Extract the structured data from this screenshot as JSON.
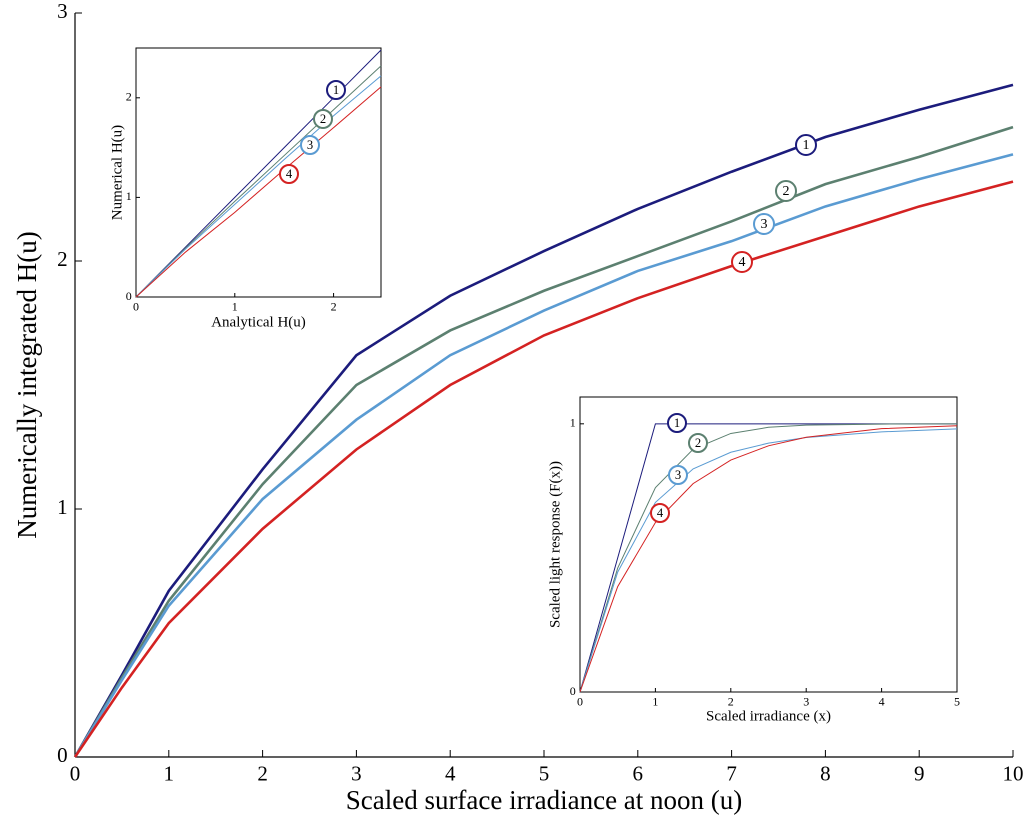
{
  "chart_data": [
    {
      "type": "line",
      "xlabel": "Scaled surface irradiance at noon (u)",
      "ylabel": "Numerically integrated H(u)",
      "x": [
        0,
        0.5,
        1,
        2,
        3,
        4,
        5,
        6,
        7,
        8,
        9,
        10
      ],
      "series": [
        {
          "name": "1",
          "color": "#1c1c7c",
          "values": [
            0,
            0.33,
            0.67,
            1.16,
            1.62,
            1.86,
            2.04,
            2.21,
            2.36,
            2.5,
            2.61,
            2.71
          ]
        },
        {
          "name": "2",
          "color": "#5c8070",
          "values": [
            0,
            0.32,
            0.63,
            1.1,
            1.5,
            1.72,
            1.88,
            2.02,
            2.16,
            2.31,
            2.42,
            2.54
          ]
        },
        {
          "name": "3",
          "color": "#5a9bd2",
          "values": [
            0,
            0.31,
            0.61,
            1.04,
            1.36,
            1.62,
            1.8,
            1.96,
            2.08,
            2.22,
            2.33,
            2.43
          ]
        },
        {
          "name": "4",
          "color": "#d42222",
          "values": [
            0,
            0.28,
            0.54,
            0.92,
            1.24,
            1.5,
            1.7,
            1.85,
            1.98,
            2.1,
            2.22,
            2.32
          ]
        }
      ],
      "xlim": [
        0,
        10
      ],
      "ylim": [
        0,
        3
      ],
      "xticks": [
        0,
        1,
        2,
        3,
        4,
        5,
        6,
        7,
        8,
        9,
        10
      ],
      "yticks": [
        0,
        1,
        2,
        3
      ]
    },
    {
      "type": "line",
      "xlabel": "Analytical H(u)",
      "ylabel": "Numerical H(u)",
      "x": [
        0,
        0.5,
        1,
        1.5,
        2,
        2.48
      ],
      "series": [
        {
          "name": "1",
          "color": "#1c1c7c",
          "values": [
            0,
            0.5,
            1,
            1.5,
            2,
            2.48
          ]
        },
        {
          "name": "2",
          "color": "#5c8070",
          "values": [
            0,
            0.49,
            0.96,
            1.42,
            1.88,
            2.32
          ]
        },
        {
          "name": "3",
          "color": "#5a9bd2",
          "values": [
            0,
            0.48,
            0.93,
            1.38,
            1.82,
            2.22
          ]
        },
        {
          "name": "4",
          "color": "#d42222",
          "values": [
            0,
            0.45,
            0.85,
            1.28,
            1.7,
            2.11
          ]
        }
      ],
      "xlim": [
        0,
        2.48
      ],
      "ylim": [
        0,
        2.5
      ],
      "xticks": [
        0,
        1,
        2
      ],
      "yticks": [
        0,
        1,
        2
      ]
    },
    {
      "type": "line",
      "xlabel": "Scaled irradiance (x)",
      "ylabel": "Scaled light response (F(x))",
      "x": [
        0,
        0.5,
        1,
        1.5,
        2,
        2.5,
        3,
        4,
        5
      ],
      "series": [
        {
          "name": "1",
          "color": "#1c1c7c",
          "values": [
            0,
            0.5,
            1,
            1,
            1,
            1,
            1,
            1,
            1
          ]
        },
        {
          "name": "2",
          "color": "#5c8070",
          "values": [
            0,
            0.462,
            0.762,
            0.905,
            0.964,
            0.987,
            0.995,
            0.999,
            1.0
          ]
        },
        {
          "name": "3",
          "color": "#5a9bd2",
          "values": [
            0,
            0.447,
            0.707,
            0.832,
            0.894,
            0.928,
            0.949,
            0.97,
            0.981
          ]
        },
        {
          "name": "4",
          "color": "#d42222",
          "values": [
            0,
            0.393,
            0.632,
            0.777,
            0.865,
            0.918,
            0.95,
            0.982,
            0.993
          ]
        }
      ],
      "xlim": [
        0,
        5
      ],
      "ylim": [
        0,
        1.1
      ],
      "xticks": [
        0,
        1,
        2,
        3,
        4,
        5
      ],
      "yticks": [
        0,
        1
      ]
    }
  ]
}
